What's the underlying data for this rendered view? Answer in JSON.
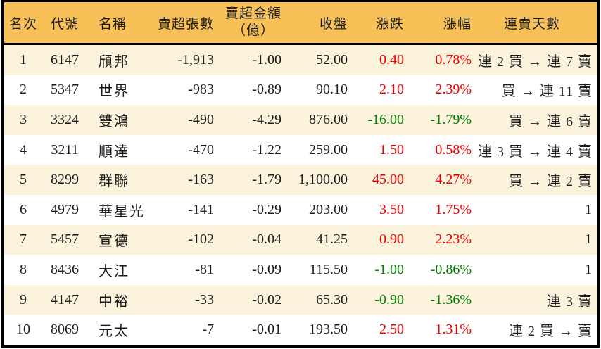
{
  "colors": {
    "header_bg": "#F8C158",
    "row_alt_bg": "#FCF3DC",
    "row_bg": "#FFFFFF",
    "text": "#1C1C1C",
    "up_text": "#EE0000",
    "down_text": "#007E00",
    "border": "#000000"
  },
  "chart_data": {
    "type": "table",
    "title": "",
    "legend": "red = price up, green = price down",
    "columns": [
      {
        "key": "rank",
        "label": "名次"
      },
      {
        "key": "code",
        "label": "代號"
      },
      {
        "key": "name",
        "label": "名稱"
      },
      {
        "key": "sell_volume",
        "label": "賣超張數"
      },
      {
        "key": "sell_amount",
        "label": "賣超金額",
        "label_sub": "（億）"
      },
      {
        "key": "close",
        "label": "收盤"
      },
      {
        "key": "change",
        "label": "漲跌"
      },
      {
        "key": "change_pct",
        "label": "漲幅"
      },
      {
        "key": "streak",
        "label": "連賣天數"
      }
    ],
    "rows": [
      {
        "rank": "1",
        "code": "6147",
        "name": "頎邦",
        "sell_volume": "-1,913",
        "sell_amount": "-1.00",
        "close": "52.00",
        "change": "0.40",
        "change_pct": "0.78%",
        "trend": "up",
        "streak": "連 2 買 → 連 7 賣"
      },
      {
        "rank": "2",
        "code": "5347",
        "name": "世界",
        "sell_volume": "-983",
        "sell_amount": "-0.89",
        "close": "90.10",
        "change": "2.10",
        "change_pct": "2.39%",
        "trend": "up",
        "streak": "買 → 連 11 賣"
      },
      {
        "rank": "3",
        "code": "3324",
        "name": "雙鴻",
        "sell_volume": "-490",
        "sell_amount": "-4.29",
        "close": "876.00",
        "change": "-16.00",
        "change_pct": "-1.79%",
        "trend": "down",
        "streak": "買 → 連 6 賣"
      },
      {
        "rank": "4",
        "code": "3211",
        "name": "順達",
        "sell_volume": "-470",
        "sell_amount": "-1.22",
        "close": "259.00",
        "change": "1.50",
        "change_pct": "0.58%",
        "trend": "up",
        "streak": "連 3 買 → 連 4 賣"
      },
      {
        "rank": "5",
        "code": "8299",
        "name": "群聯",
        "sell_volume": "-163",
        "sell_amount": "-1.79",
        "close": "1,100.00",
        "change": "45.00",
        "change_pct": "4.27%",
        "trend": "up",
        "streak": "買 → 連 2 賣"
      },
      {
        "rank": "6",
        "code": "4979",
        "name": "華星光",
        "sell_volume": "-141",
        "sell_amount": "-0.29",
        "close": "203.00",
        "change": "3.50",
        "change_pct": "1.75%",
        "trend": "up",
        "streak": "1"
      },
      {
        "rank": "7",
        "code": "5457",
        "name": "宣德",
        "sell_volume": "-102",
        "sell_amount": "-0.04",
        "close": "41.25",
        "change": "0.90",
        "change_pct": "2.23%",
        "trend": "up",
        "streak": "1"
      },
      {
        "rank": "8",
        "code": "8436",
        "name": "大江",
        "sell_volume": "-81",
        "sell_amount": "-0.09",
        "close": "115.50",
        "change": "-1.00",
        "change_pct": "-0.86%",
        "trend": "down",
        "streak": "1"
      },
      {
        "rank": "9",
        "code": "4147",
        "name": "中裕",
        "sell_volume": "-33",
        "sell_amount": "-0.02",
        "close": "65.30",
        "change": "-0.90",
        "change_pct": "-1.36%",
        "trend": "down",
        "streak": "連 3 賣"
      },
      {
        "rank": "10",
        "code": "8069",
        "name": "元太",
        "sell_volume": "-7",
        "sell_amount": "-0.01",
        "close": "193.50",
        "change": "2.50",
        "change_pct": "1.31%",
        "trend": "up",
        "streak": "連 2 買 → 賣"
      }
    ]
  }
}
